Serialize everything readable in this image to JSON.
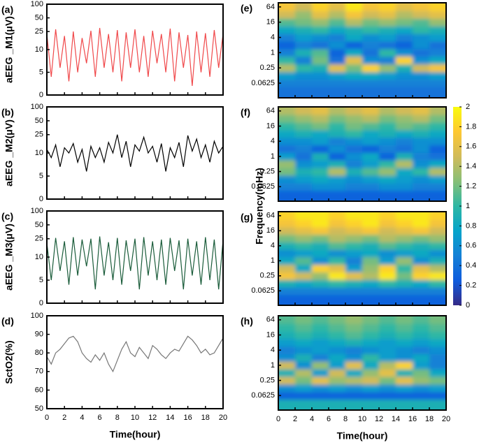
{
  "chart_data": [
    {
      "type": "line",
      "panel": "(a)",
      "ylabel": "aEEG _M1(μV)",
      "color": "#f0484a",
      "yscale": "aeeg",
      "ylim": [
        0,
        100
      ],
      "yticks": [
        0,
        5,
        10,
        25,
        50,
        100
      ],
      "xlim": [
        0,
        20
      ],
      "xticks": [
        0,
        2,
        4,
        6,
        8,
        10,
        12,
        14,
        16,
        18,
        20
      ],
      "show_xticklabels": false,
      "x": [
        0,
        0.5,
        1,
        1.5,
        2,
        2.5,
        3,
        3.5,
        4,
        4.5,
        5,
        5.5,
        6,
        6.5,
        7,
        7.5,
        8,
        8.5,
        9,
        9.5,
        10,
        10.5,
        11,
        11.5,
        12,
        12.5,
        13,
        13.5,
        14,
        14.5,
        15,
        15.5,
        16,
        16.5,
        17,
        17.5,
        18,
        18.5,
        19,
        19.5,
        20
      ],
      "values": [
        22,
        4,
        28,
        6,
        20,
        3,
        25,
        5,
        18,
        7,
        26,
        4,
        30,
        6,
        22,
        5,
        27,
        3,
        24,
        6,
        28,
        5,
        20,
        4,
        26,
        7,
        22,
        5,
        29,
        3,
        24,
        6,
        21,
        2,
        25,
        5,
        23,
        4,
        27,
        6,
        22
      ]
    },
    {
      "type": "line",
      "panel": "(b)",
      "ylabel": "aEEG _M2(μV)",
      "color": "#000000",
      "yscale": "aeeg",
      "ylim": [
        0,
        100
      ],
      "yticks": [
        0,
        5,
        10,
        25,
        50,
        100
      ],
      "xlim": [
        0,
        20
      ],
      "xticks": [
        0,
        2,
        4,
        6,
        8,
        10,
        12,
        14,
        16,
        18,
        20
      ],
      "show_xticklabels": false,
      "x": [
        0,
        0.5,
        1,
        1.5,
        2,
        2.5,
        3,
        3.5,
        4,
        4.5,
        5,
        5.5,
        6,
        6.5,
        7,
        7.5,
        8,
        8.5,
        9,
        9.5,
        10,
        10.5,
        11,
        11.5,
        12,
        12.5,
        13,
        13.5,
        14,
        14.5,
        15,
        15.5,
        16,
        16.5,
        17,
        17.5,
        18,
        18.5,
        19,
        19.5,
        20
      ],
      "values": [
        12,
        9,
        15,
        7,
        13,
        10,
        16,
        8,
        12,
        6,
        14,
        9,
        13,
        8,
        17,
        10,
        25,
        9,
        18,
        7,
        15,
        11,
        22,
        10,
        14,
        8,
        16,
        6,
        13,
        9,
        17,
        7,
        24,
        11,
        20,
        9,
        15,
        8,
        18,
        10,
        14
      ]
    },
    {
      "type": "line",
      "panel": "(c)",
      "ylabel": "aEEG _M3(μV)",
      "color": "#1a5c3a",
      "yscale": "aeeg",
      "ylim": [
        0,
        100
      ],
      "yticks": [
        0,
        5,
        10,
        25,
        50,
        100
      ],
      "xlim": [
        0,
        20
      ],
      "xticks": [
        0,
        2,
        4,
        6,
        8,
        10,
        12,
        14,
        16,
        18,
        20
      ],
      "show_xticklabels": false,
      "x": [
        0,
        0.5,
        1,
        1.5,
        2,
        2.5,
        3,
        3.5,
        4,
        4.5,
        5,
        5.5,
        6,
        6.5,
        7,
        7.5,
        8,
        8.5,
        9,
        9.5,
        10,
        10.5,
        11,
        11.5,
        12,
        12.5,
        13,
        13.5,
        14,
        14.5,
        15,
        15.5,
        16,
        16.5,
        17,
        17.5,
        18,
        18.5,
        19,
        19.5,
        20
      ],
      "values": [
        20,
        5,
        26,
        7,
        22,
        4,
        27,
        6,
        24,
        8,
        25,
        3,
        28,
        6,
        21,
        5,
        26,
        4,
        23,
        7,
        25,
        3,
        27,
        6,
        22,
        5,
        24,
        4,
        26,
        7,
        23,
        3,
        25,
        6,
        22,
        4,
        27,
        5,
        24,
        3,
        23
      ]
    },
    {
      "type": "line",
      "panel": "(d)",
      "ylabel": "SctO2(%)",
      "xlabel": "Time(hour)",
      "color": "#777777",
      "yscale": "linear",
      "ylim": [
        50,
        100
      ],
      "yticks": [
        50,
        60,
        70,
        80,
        90,
        100
      ],
      "xlim": [
        0,
        20
      ],
      "xticks": [
        0,
        2,
        4,
        6,
        8,
        10,
        12,
        14,
        16,
        18,
        20
      ],
      "show_xticklabels": true,
      "x": [
        0,
        0.5,
        1,
        1.5,
        2,
        2.5,
        3,
        3.5,
        4,
        4.5,
        5,
        5.5,
        6,
        6.5,
        7,
        7.5,
        8,
        8.5,
        9,
        9.5,
        10,
        10.5,
        11,
        11.5,
        12,
        12.5,
        13,
        13.5,
        14,
        14.5,
        15,
        15.5,
        16,
        16.5,
        17,
        17.5,
        18,
        18.5,
        19,
        19.5,
        20
      ],
      "values": [
        78,
        74,
        80,
        82,
        85,
        88,
        89,
        86,
        80,
        77,
        75,
        79,
        76,
        80,
        74,
        70,
        76,
        82,
        86,
        80,
        78,
        83,
        80,
        77,
        84,
        82,
        79,
        77,
        80,
        82,
        81,
        85,
        89,
        87,
        84,
        80,
        82,
        79,
        80,
        84,
        88
      ]
    },
    {
      "type": "heatmap",
      "panel": "(e)",
      "yscale": "log",
      "ylim": [
        0.0165,
        93
      ],
      "yticks": [
        0.0625,
        0.25,
        1,
        4,
        16,
        64
      ],
      "xlim": [
        0,
        20
      ],
      "xticks": [
        0,
        2,
        4,
        6,
        8,
        10,
        12,
        14,
        16,
        18,
        20
      ],
      "show_xticklabels": false,
      "x": [
        1,
        3,
        5,
        7,
        9,
        11,
        13,
        15,
        17,
        19
      ],
      "y": [
        0.03125,
        0.0625,
        0.125,
        0.25,
        0.5,
        1,
        2,
        4,
        8,
        16,
        32,
        64
      ],
      "z": [
        [
          0.4,
          0.4,
          0.4,
          0.4,
          0.4,
          0.4,
          0.4,
          0.4,
          0.4,
          0.4
        ],
        [
          0.5,
          0.5,
          0.5,
          0.5,
          0.5,
          0.5,
          0.5,
          0.5,
          0.5,
          0.5
        ],
        [
          0.7,
          0.6,
          0.6,
          0.7,
          0.8,
          0.8,
          0.7,
          0.6,
          0.6,
          0.7
        ],
        [
          1.4,
          1.0,
          0.9,
          1.6,
          1.2,
          1.8,
          1.3,
          0.9,
          1.5,
          1.7
        ],
        [
          1.0,
          0.5,
          1.2,
          0.4,
          1.6,
          0.6,
          0.5,
          1.8,
          0.6,
          0.8
        ],
        [
          0.5,
          0.9,
          1.1,
          0.3,
          0.8,
          0.4,
          1.0,
          0.6,
          0.4,
          0.5
        ],
        [
          0.3,
          0.5,
          0.4,
          0.6,
          0.3,
          0.5,
          0.4,
          0.3,
          0.6,
          0.4
        ],
        [
          0.5,
          0.7,
          0.6,
          0.5,
          0.8,
          0.6,
          0.7,
          0.5,
          0.6,
          0.7
        ],
        [
          0.8,
          0.9,
          1.0,
          0.8,
          0.9,
          1.0,
          0.9,
          0.8,
          1.0,
          0.9
        ],
        [
          1.1,
          1.2,
          1.3,
          1.1,
          1.4,
          1.2,
          1.3,
          1.2,
          1.1,
          1.3
        ],
        [
          1.5,
          1.3,
          1.6,
          1.4,
          1.7,
          1.5,
          1.6,
          1.4,
          1.5,
          1.6
        ],
        [
          1.7,
          1.5,
          1.8,
          1.6,
          1.9,
          1.7,
          1.8,
          1.6,
          1.7,
          1.8
        ]
      ]
    },
    {
      "type": "heatmap",
      "panel": "(f)",
      "ylabel": "Frequency(mHz)",
      "yscale": "log",
      "ylim": [
        0.0165,
        93
      ],
      "yticks": [
        0.0625,
        0.25,
        1,
        4,
        16,
        64
      ],
      "xlim": [
        0,
        20
      ],
      "xticks": [
        0,
        2,
        4,
        6,
        8,
        10,
        12,
        14,
        16,
        18,
        20
      ],
      "show_xticklabels": false,
      "x": [
        1,
        3,
        5,
        7,
        9,
        11,
        13,
        15,
        17,
        19
      ],
      "y": [
        0.03125,
        0.0625,
        0.125,
        0.25,
        0.5,
        1,
        2,
        4,
        8,
        16,
        32,
        64
      ],
      "z": [
        [
          0.3,
          0.3,
          0.3,
          0.3,
          0.3,
          0.3,
          0.3,
          0.3,
          0.3,
          0.3
        ],
        [
          0.5,
          0.5,
          0.6,
          0.6,
          0.5,
          0.5,
          0.6,
          0.6,
          0.5,
          0.5
        ],
        [
          0.6,
          0.7,
          0.8,
          0.7,
          0.6,
          0.7,
          0.8,
          0.7,
          0.6,
          0.7
        ],
        [
          1.2,
          0.9,
          1.0,
          1.4,
          0.9,
          1.1,
          1.3,
          0.8,
          1.0,
          1.4
        ],
        [
          1.3,
          0.6,
          0.7,
          0.9,
          0.5,
          0.7,
          1.0,
          1.4,
          0.6,
          0.8
        ],
        [
          0.7,
          0.4,
          0.9,
          0.3,
          0.6,
          0.8,
          0.3,
          0.9,
          0.5,
          0.4
        ],
        [
          0.4,
          0.5,
          0.3,
          0.6,
          0.4,
          0.3,
          0.5,
          0.4,
          0.6,
          0.3
        ],
        [
          0.6,
          0.6,
          0.7,
          0.5,
          0.6,
          0.7,
          0.6,
          0.5,
          0.6,
          0.6
        ],
        [
          0.8,
          0.9,
          0.8,
          0.9,
          1.0,
          0.8,
          0.9,
          0.8,
          0.9,
          0.8
        ],
        [
          1.0,
          1.1,
          1.2,
          1.0,
          1.2,
          1.1,
          1.0,
          1.2,
          1.1,
          1.0
        ],
        [
          1.2,
          1.3,
          1.4,
          1.2,
          1.3,
          1.4,
          1.2,
          1.3,
          1.4,
          1.2
        ],
        [
          1.4,
          1.5,
          1.6,
          1.4,
          1.5,
          1.6,
          1.4,
          1.5,
          1.6,
          1.4
        ]
      ]
    },
    {
      "type": "heatmap",
      "panel": "(g)",
      "yscale": "log",
      "ylim": [
        0.0165,
        93
      ],
      "yticks": [
        0.0625,
        0.25,
        1,
        4,
        16,
        64
      ],
      "xlim": [
        0,
        20
      ],
      "xticks": [
        0,
        2,
        4,
        6,
        8,
        10,
        12,
        14,
        16,
        18,
        20
      ],
      "show_xticklabels": false,
      "x": [
        1,
        3,
        5,
        7,
        9,
        11,
        13,
        15,
        17,
        19
      ],
      "y": [
        0.03125,
        0.0625,
        0.125,
        0.25,
        0.5,
        1,
        2,
        4,
        8,
        16,
        32,
        64
      ],
      "z": [
        [
          0.3,
          0.3,
          0.3,
          0.3,
          0.3,
          0.3,
          0.3,
          0.3,
          0.3,
          0.3
        ],
        [
          0.5,
          0.5,
          0.5,
          0.5,
          0.5,
          0.5,
          0.5,
          0.5,
          0.5,
          0.5
        ],
        [
          0.9,
          0.8,
          0.9,
          1.0,
          0.9,
          0.8,
          1.0,
          0.9,
          0.8,
          1.0
        ],
        [
          1.7,
          1.5,
          1.3,
          1.9,
          1.6,
          1.4,
          1.9,
          1.2,
          1.8,
          1.9
        ],
        [
          1.5,
          0.8,
          1.8,
          1.6,
          0.7,
          1.3,
          1.8,
          1.0,
          1.6,
          1.4
        ],
        [
          0.8,
          1.1,
          0.6,
          1.0,
          0.5,
          1.2,
          0.7,
          1.3,
          0.6,
          0.9
        ],
        [
          0.6,
          0.7,
          0.8,
          0.6,
          0.7,
          0.8,
          0.6,
          0.7,
          0.8,
          0.6
        ],
        [
          0.9,
          1.0,
          0.9,
          1.1,
          1.0,
          0.9,
          1.1,
          1.0,
          0.9,
          1.0
        ],
        [
          1.2,
          1.3,
          1.2,
          1.4,
          1.3,
          1.2,
          1.4,
          1.3,
          1.2,
          1.3
        ],
        [
          1.5,
          1.6,
          1.7,
          1.5,
          1.6,
          1.7,
          1.5,
          1.6,
          1.7,
          1.5
        ],
        [
          1.7,
          1.8,
          1.9,
          1.7,
          1.8,
          1.9,
          1.7,
          1.8,
          1.9,
          1.7
        ],
        [
          1.8,
          1.9,
          1.9,
          1.8,
          1.9,
          1.9,
          1.8,
          1.9,
          1.9,
          1.8
        ]
      ]
    },
    {
      "type": "heatmap",
      "panel": "(h)",
      "xlabel": "Time(hour)",
      "yscale": "log",
      "ylim": [
        0.0165,
        93
      ],
      "yticks": [
        0.0625,
        0.25,
        1,
        4,
        16,
        64
      ],
      "xlim": [
        0,
        20
      ],
      "xticks": [
        0,
        2,
        4,
        6,
        8,
        10,
        12,
        14,
        16,
        18,
        20
      ],
      "show_xticklabels": true,
      "x": [
        1,
        3,
        5,
        7,
        9,
        11,
        13,
        15,
        17,
        19
      ],
      "y": [
        0.03125,
        0.0625,
        0.125,
        0.25,
        0.5,
        1,
        2,
        4,
        8,
        16,
        32,
        64
      ],
      "z": [
        [
          0.9,
          0.9,
          0.9,
          0.9,
          0.9,
          0.9,
          0.9,
          0.9,
          0.9,
          0.9
        ],
        [
          0.3,
          0.3,
          0.3,
          0.3,
          0.3,
          0.3,
          0.3,
          0.3,
          0.3,
          0.3
        ],
        [
          0.6,
          0.7,
          0.6,
          0.7,
          0.6,
          0.7,
          0.6,
          0.7,
          0.6,
          0.7
        ],
        [
          1.5,
          1.2,
          1.6,
          1.3,
          1.4,
          1.5,
          1.2,
          1.6,
          1.3,
          1.2
        ],
        [
          0.9,
          1.4,
          0.7,
          1.5,
          0.8,
          1.3,
          1.6,
          0.9,
          1.2,
          0.8
        ],
        [
          1.5,
          0.6,
          1.3,
          0.7,
          1.6,
          0.8,
          1.4,
          1.8,
          0.7,
          0.5
        ],
        [
          0.6,
          0.9,
          0.5,
          0.8,
          0.6,
          1.0,
          0.7,
          0.6,
          0.8,
          0.5
        ],
        [
          0.5,
          0.6,
          0.7,
          0.6,
          0.5,
          0.6,
          0.7,
          0.6,
          0.5,
          0.6
        ],
        [
          0.7,
          0.8,
          0.7,
          0.8,
          0.9,
          0.8,
          0.7,
          0.8,
          0.7,
          0.8
        ],
        [
          0.9,
          1.0,
          0.9,
          1.0,
          1.1,
          1.0,
          0.9,
          1.0,
          0.9,
          1.0
        ],
        [
          1.0,
          1.1,
          1.0,
          1.1,
          1.2,
          1.1,
          1.0,
          1.1,
          1.0,
          1.1
        ],
        [
          1.1,
          1.2,
          1.1,
          1.2,
          1.3,
          1.2,
          1.1,
          1.2,
          1.1,
          1.2
        ]
      ]
    }
  ],
  "colorbar": {
    "lim": [
      0,
      2
    ],
    "ticks": [
      0,
      0.2,
      0.4,
      0.6,
      0.8,
      1,
      1.2,
      1.4,
      1.6,
      1.8,
      2
    ],
    "colormap": [
      "#352a87",
      "#0f5cdd",
      "#1481d6",
      "#06a4ca",
      "#2eb7a4",
      "#87bf77",
      "#d1bb59",
      "#fec832",
      "#f9fb0e"
    ]
  }
}
